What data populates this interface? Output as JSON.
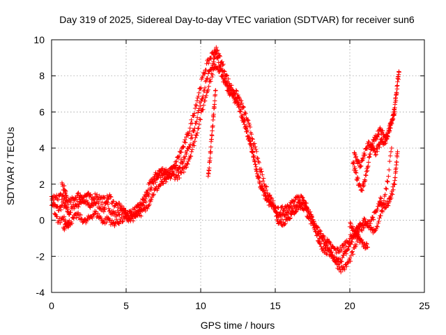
{
  "chart_data": {
    "type": "scatter",
    "title": "Day 319 of 2025, Sidereal Day-to-day VTEC variation (SDTVAR) for receiver sun6",
    "xlabel": "GPS time / hours",
    "ylabel": "SDTVAR / TECUs",
    "xlim": [
      0,
      25
    ],
    "ylim": [
      -4,
      10
    ],
    "xticks": [
      0,
      5,
      10,
      15,
      20,
      25
    ],
    "yticks": [
      -4,
      -2,
      0,
      2,
      4,
      6,
      8,
      10
    ],
    "grid": true,
    "marker": "+",
    "series": [
      {
        "name": "SDTVAR",
        "color": "#ff0000",
        "tracks": [
          [
            [
              0.0,
              1.0
            ],
            [
              0.2,
              0.8
            ],
            [
              0.5,
              0.6
            ],
            [
              0.8,
              0.9
            ],
            [
              1.0,
              0.6
            ],
            [
              1.2,
              0.4
            ],
            [
              1.5,
              0.8
            ],
            [
              1.8,
              0.9
            ],
            [
              2.0,
              1.1
            ],
            [
              2.3,
              1.0
            ],
            [
              2.6,
              0.7
            ],
            [
              2.9,
              1.0
            ],
            [
              3.2,
              0.8
            ],
            [
              3.5,
              0.6
            ],
            [
              3.7,
              0.9
            ],
            [
              4.0,
              0.5
            ],
            [
              4.3,
              0.3
            ],
            [
              4.6,
              0.5
            ],
            [
              4.9,
              0.5
            ],
            [
              5.2,
              0.4
            ],
            [
              5.5,
              0.5
            ],
            [
              5.8,
              0.7
            ],
            [
              6.0,
              0.9
            ],
            [
              6.3,
              1.4
            ],
            [
              6.6,
              2.0
            ],
            [
              6.9,
              2.4
            ],
            [
              7.2,
              2.7
            ],
            [
              7.5,
              2.8
            ],
            [
              7.8,
              2.7
            ],
            [
              8.1,
              2.8
            ],
            [
              8.4,
              2.9
            ],
            [
              8.7,
              3.2
            ],
            [
              9.0,
              3.6
            ],
            [
              9.3,
              4.3
            ],
            [
              9.6,
              5.2
            ],
            [
              9.9,
              6.2
            ],
            [
              10.2,
              7.2
            ],
            [
              10.5,
              8.0
            ],
            [
              10.8,
              8.6
            ],
            [
              11.0,
              9.2
            ],
            [
              11.2,
              8.8
            ],
            [
              11.5,
              8.0
            ],
            [
              11.8,
              7.4
            ],
            [
              12.1,
              7.0
            ],
            [
              12.4,
              6.6
            ],
            [
              12.7,
              6.0
            ],
            [
              13.0,
              5.3
            ],
            [
              13.3,
              4.4
            ],
            [
              13.5,
              3.6
            ],
            [
              13.8,
              2.6
            ],
            [
              14.1,
              1.7
            ],
            [
              14.4,
              1.2
            ],
            [
              14.7,
              0.8
            ],
            [
              15.0,
              0.6
            ],
            [
              15.3,
              0.5
            ],
            [
              15.6,
              0.7
            ],
            [
              15.9,
              0.9
            ],
            [
              16.2,
              1.0
            ],
            [
              16.5,
              1.2
            ],
            [
              16.8,
              1.3
            ],
            [
              17.1,
              0.8
            ],
            [
              17.4,
              0.2
            ],
            [
              17.7,
              -0.4
            ],
            [
              18.0,
              -0.9
            ],
            [
              18.3,
              -1.3
            ],
            [
              18.6,
              -1.7
            ],
            [
              18.9,
              -2.1
            ],
            [
              19.2,
              -2.3
            ],
            [
              19.5,
              -2.1
            ],
            [
              19.8,
              -1.7
            ],
            [
              20.1,
              -1.2
            ],
            [
              20.4,
              -0.6
            ],
            [
              20.7,
              -0.2
            ],
            [
              21.0,
              0.0
            ],
            [
              21.3,
              -0.3
            ],
            [
              21.6,
              -0.6
            ],
            [
              21.9,
              -0.2
            ],
            [
              22.2,
              0.6
            ],
            [
              22.5,
              2.0
            ],
            [
              22.8,
              4.0
            ]
          ],
          [
            [
              0.0,
              1.3
            ],
            [
              0.3,
              1.2
            ],
            [
              0.6,
              1.4
            ],
            [
              0.9,
              1.1
            ],
            [
              1.2,
              1.0
            ],
            [
              1.5,
              1.2
            ],
            [
              1.8,
              1.4
            ],
            [
              2.1,
              1.3
            ],
            [
              2.4,
              1.4
            ],
            [
              2.7,
              1.2
            ],
            [
              3.0,
              1.4
            ],
            [
              3.3,
              1.2
            ],
            [
              3.6,
              1.1
            ],
            [
              3.9,
              1.3
            ],
            [
              4.2,
              0.9
            ],
            [
              4.5,
              0.8
            ],
            [
              4.8,
              0.6
            ],
            [
              5.1,
              0.2
            ],
            [
              5.4,
              0.3
            ],
            [
              5.7,
              0.4
            ],
            [
              6.0,
              0.4
            ],
            [
              6.3,
              0.6
            ],
            [
              6.6,
              1.1
            ],
            [
              6.9,
              1.6
            ],
            [
              7.2,
              1.9
            ],
            [
              7.5,
              2.1
            ],
            [
              7.8,
              2.3
            ],
            [
              8.1,
              2.5
            ],
            [
              8.4,
              2.4
            ],
            [
              8.7,
              2.6
            ],
            [
              9.0,
              3.0
            ],
            [
              9.3,
              3.6
            ],
            [
              9.6,
              4.4
            ],
            [
              9.9,
              5.4
            ],
            [
              10.2,
              6.4
            ],
            [
              10.5,
              7.4
            ],
            [
              10.8,
              8.2
            ],
            [
              11.0,
              8.6
            ],
            [
              11.3,
              8.3
            ],
            [
              11.6,
              7.6
            ],
            [
              11.9,
              7.1
            ],
            [
              12.2,
              6.8
            ],
            [
              12.5,
              6.4
            ],
            [
              12.8,
              5.7
            ],
            [
              13.1,
              4.9
            ],
            [
              13.4,
              4.0
            ],
            [
              13.7,
              3.0
            ],
            [
              14.0,
              2.0
            ],
            [
              14.3,
              1.4
            ],
            [
              14.6,
              1.0
            ],
            [
              14.9,
              0.8
            ],
            [
              15.2,
              0.3
            ],
            [
              15.5,
              0.2
            ],
            [
              15.8,
              0.5
            ],
            [
              16.1,
              0.6
            ],
            [
              16.4,
              0.8
            ],
            [
              16.7,
              0.9
            ],
            [
              17.0,
              1.0
            ],
            [
              17.3,
              0.4
            ],
            [
              17.6,
              -0.2
            ],
            [
              17.9,
              -0.6
            ],
            [
              18.2,
              -0.9
            ],
            [
              18.5,
              -1.2
            ],
            [
              18.8,
              -1.5
            ],
            [
              19.1,
              -1.7
            ],
            [
              19.4,
              -1.6
            ],
            [
              19.7,
              -1.3
            ],
            [
              20.0,
              -1.0
            ],
            [
              20.3,
              -0.8
            ],
            [
              20.6,
              -0.5
            ],
            [
              20.9,
              -0.4
            ],
            [
              21.2,
              -0.2
            ],
            [
              21.5,
              0.1
            ],
            [
              21.8,
              0.5
            ],
            [
              22.1,
              1.2
            ]
          ],
          [
            [
              0.2,
              0.3
            ],
            [
              0.5,
              -0.1
            ],
            [
              0.8,
              0.2
            ],
            [
              1.1,
              -0.2
            ],
            [
              1.4,
              0.0
            ],
            [
              1.7,
              0.3
            ],
            [
              2.0,
              0.1
            ],
            [
              2.3,
              -0.1
            ],
            [
              2.6,
              0.2
            ],
            [
              2.9,
              0.4
            ],
            [
              3.2,
              0.2
            ],
            [
              3.5,
              -0.1
            ],
            [
              3.8,
              0.1
            ],
            [
              4.1,
              -0.2
            ],
            [
              4.4,
              -0.1
            ],
            [
              4.7,
              0.0
            ],
            [
              5.0,
              0.1
            ],
            [
              5.3,
              0.0
            ],
            [
              5.6,
              0.2
            ],
            [
              5.9,
              0.5
            ],
            [
              6.2,
              0.9
            ],
            [
              6.5,
              1.5
            ],
            [
              6.8,
              2.1
            ],
            [
              7.1,
              2.4
            ],
            [
              7.4,
              2.5
            ],
            [
              7.7,
              2.4
            ],
            [
              8.0,
              2.6
            ],
            [
              8.3,
              3.1
            ],
            [
              8.6,
              3.7
            ],
            [
              8.9,
              4.2
            ],
            [
              9.2,
              4.9
            ],
            [
              9.5,
              5.8
            ],
            [
              9.8,
              6.8
            ],
            [
              10.1,
              7.8
            ],
            [
              10.4,
              8.6
            ],
            [
              10.7,
              9.1
            ],
            [
              11.0,
              9.5
            ],
            [
              11.3,
              9.0
            ],
            [
              11.6,
              8.3
            ],
            [
              11.9,
              7.6
            ],
            [
              12.2,
              7.2
            ],
            [
              12.5,
              6.9
            ],
            [
              12.8,
              6.3
            ],
            [
              13.1,
              5.6
            ],
            [
              13.4,
              4.8
            ],
            [
              13.7,
              3.8
            ],
            [
              14.0,
              2.8
            ],
            [
              14.3,
              1.9
            ],
            [
              14.6,
              1.4
            ],
            [
              14.9,
              0.9
            ],
            [
              15.2,
              -0.1
            ],
            [
              15.5,
              -0.2
            ],
            [
              15.8,
              0.1
            ],
            [
              16.1,
              0.3
            ],
            [
              16.4,
              0.6
            ],
            [
              16.7,
              0.8
            ],
            [
              17.0,
              0.6
            ],
            [
              17.3,
              0.1
            ],
            [
              17.6,
              -0.5
            ],
            [
              17.9,
              -1.1
            ],
            [
              18.2,
              -1.6
            ],
            [
              18.5,
              -1.8
            ],
            [
              18.8,
              -1.9
            ],
            [
              19.1,
              -2.4
            ],
            [
              19.4,
              -2.7
            ],
            [
              19.7,
              -2.6
            ],
            [
              20.0,
              -2.2
            ],
            [
              20.3,
              -1.6
            ],
            [
              20.6,
              -0.9
            ]
          ],
          [
            [
              0.7,
              1.9
            ],
            [
              0.9,
              1.7
            ],
            [
              1.0,
              1.3
            ]
          ],
          [
            [
              0.8,
              -0.4
            ],
            [
              1.0,
              -0.3
            ],
            [
              1.2,
              -0.2
            ]
          ],
          [
            [
              10.5,
              2.4
            ],
            [
              10.6,
              3.2
            ],
            [
              10.7,
              4.2
            ],
            [
              10.8,
              5.2
            ],
            [
              10.9,
              6.2
            ],
            [
              11.0,
              7.2
            ]
          ],
          [
            [
              20.3,
              3.7
            ],
            [
              20.5,
              3.3
            ],
            [
              20.7,
              3.0
            ],
            [
              20.9,
              3.4
            ],
            [
              21.1,
              4.0
            ],
            [
              21.3,
              4.3
            ],
            [
              21.5,
              4.0
            ],
            [
              21.7,
              3.7
            ],
            [
              21.9,
              4.0
            ],
            [
              22.1,
              4.4
            ],
            [
              22.3,
              4.2
            ],
            [
              22.5,
              4.6
            ],
            [
              22.7,
              5.2
            ],
            [
              22.9,
              5.7
            ],
            [
              23.0,
              6.1
            ],
            [
              23.1,
              6.9
            ],
            [
              23.2,
              7.6
            ],
            [
              23.3,
              8.2
            ]
          ],
          [
            [
              20.2,
              3.2
            ],
            [
              20.4,
              2.6
            ],
            [
              20.6,
              2.0
            ],
            [
              20.8,
              1.7
            ],
            [
              21.0,
              2.2
            ],
            [
              21.2,
              3.0
            ],
            [
              21.4,
              3.8
            ],
            [
              21.6,
              4.4
            ],
            [
              21.8,
              4.7
            ],
            [
              22.0,
              5.0
            ],
            [
              22.2,
              4.8
            ],
            [
              22.4,
              4.6
            ],
            [
              22.6,
              5.0
            ],
            [
              22.8,
              5.5
            ],
            [
              23.0,
              5.9
            ]
          ],
          [
            [
              20.0,
              -0.2
            ],
            [
              20.2,
              -0.5
            ],
            [
              20.4,
              -0.8
            ],
            [
              20.6,
              -1.0
            ],
            [
              20.8,
              -1.2
            ],
            [
              21.0,
              -1.4
            ],
            [
              21.2,
              -1.5
            ]
          ],
          [
            [
              22.0,
              0.9
            ],
            [
              22.2,
              0.8
            ],
            [
              22.4,
              0.8
            ],
            [
              22.6,
              1.0
            ],
            [
              22.8,
              1.4
            ],
            [
              23.0,
              2.1
            ],
            [
              23.1,
              3.0
            ],
            [
              23.2,
              3.8
            ]
          ]
        ]
      }
    ]
  }
}
